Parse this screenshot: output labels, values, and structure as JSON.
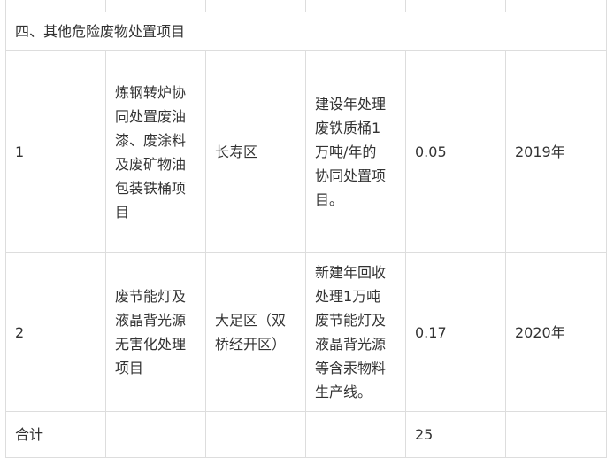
{
  "section_title": "四、其他危险废物处置项目",
  "rows": [
    {
      "no": "1",
      "name": "炼钢转炉协同处置废油漆、废涂料及废矿物油包装铁桶项目",
      "district": "长寿区",
      "content": "建设年处理废铁质桶1万吨/年的协同处置项目。",
      "amount": "0.05",
      "year": "2019年"
    },
    {
      "no": "2",
      "name": "废节能灯及液晶背光源无害化处理项目",
      "district": "大足区（双桥经开区）",
      "content": "新建年回收处理1万吨废节能灯及液晶背光源等含汞物料生产线。",
      "amount": "0.17",
      "year": "2020年"
    }
  ],
  "total": {
    "label": "合计",
    "amount": "25"
  }
}
